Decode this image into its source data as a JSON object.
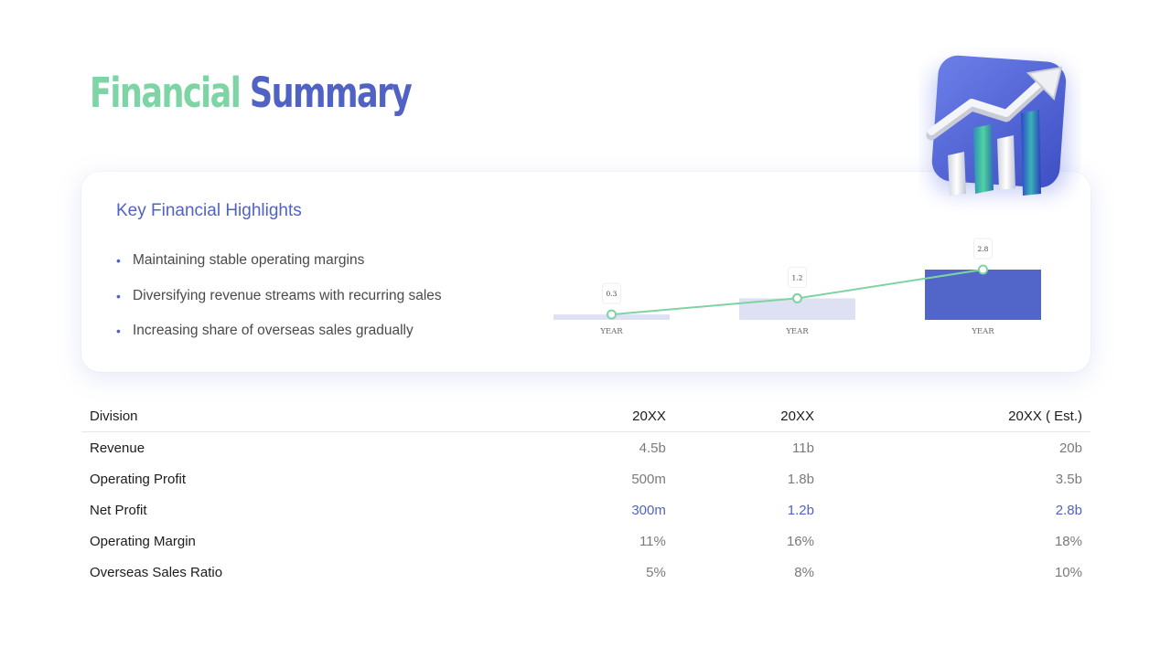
{
  "title": {
    "part1": "Financial",
    "part2": "Summary"
  },
  "highlights": {
    "heading": "Key Financial Highlights",
    "bullets": [
      "Maintaining stable operating margins",
      "Diversifying revenue streams with recurring sales",
      "Increasing share of overseas sales gradually"
    ]
  },
  "chart_data": {
    "type": "bar",
    "categories": [
      "YEAR",
      "YEAR",
      "YEAR"
    ],
    "values": [
      0.3,
      1.2,
      2.8
    ],
    "data_labels": [
      "0.3",
      "1.2",
      "2.8"
    ],
    "overlay_line": true,
    "ylim": [
      0,
      2.8
    ],
    "grid": false,
    "colors": {
      "bar_light": "#dde1f3",
      "bar_accent": "#5265c8",
      "line": "#7fd3a2"
    }
  },
  "table": {
    "headers": [
      "Division",
      "20XX",
      "20XX",
      "20XX ( Est.)"
    ],
    "rows": [
      {
        "label": "Revenue",
        "values": [
          "4.5b",
          "11b",
          "20b"
        ]
      },
      {
        "label": "Operating Profit",
        "values": [
          "500m",
          "1.8b",
          "3.5b"
        ]
      },
      {
        "label": "Net Profit",
        "values": [
          "300m",
          "1.2b",
          "2.8b"
        ]
      },
      {
        "label": "Operating Margin",
        "values": [
          "11%",
          "16%",
          "18%"
        ]
      },
      {
        "label": "Overseas Sales Ratio",
        "values": [
          "5%",
          "8%",
          "10%"
        ]
      }
    ]
  },
  "decor": {
    "icon": "growth-chart-3d-icon"
  },
  "colors": {
    "green": "#7ed4a4",
    "blue": "#5063c4",
    "highlight_row": "#5063c4"
  }
}
